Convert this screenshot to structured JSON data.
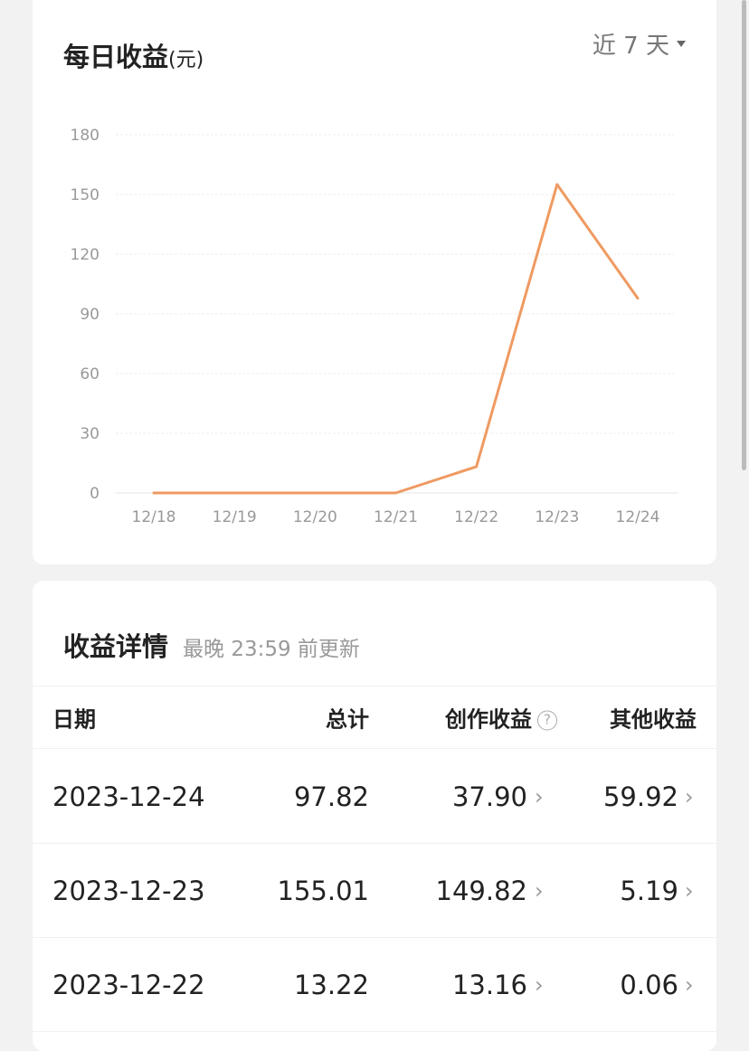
{
  "chart_card": {
    "title": "每日收益",
    "unit": "(元)",
    "range_label": "近 7 天"
  },
  "chart_data": {
    "type": "line",
    "categories": [
      "12/18",
      "12/19",
      "12/20",
      "12/21",
      "12/22",
      "12/23",
      "12/24"
    ],
    "values": [
      0,
      0,
      0,
      0,
      13.22,
      155.01,
      97.82
    ],
    "yticks": [
      0,
      30,
      60,
      90,
      120,
      150,
      180
    ],
    "ylim": [
      0,
      180
    ],
    "grid": true,
    "line_color": "#ef9a62"
  },
  "details": {
    "title": "收益详情",
    "subtitle": "最晚 23:59 前更新",
    "headers": [
      "日期",
      "总计",
      "创作收益",
      "其他收益"
    ],
    "help_icon": "?",
    "rows": [
      {
        "date": "2023-12-24",
        "total": "97.82",
        "creation": "37.90",
        "other": "59.92"
      },
      {
        "date": "2023-12-23",
        "total": "155.01",
        "creation": "149.82",
        "other": "5.19"
      },
      {
        "date": "2023-12-22",
        "total": "13.22",
        "creation": "13.16",
        "other": "0.06"
      }
    ]
  }
}
